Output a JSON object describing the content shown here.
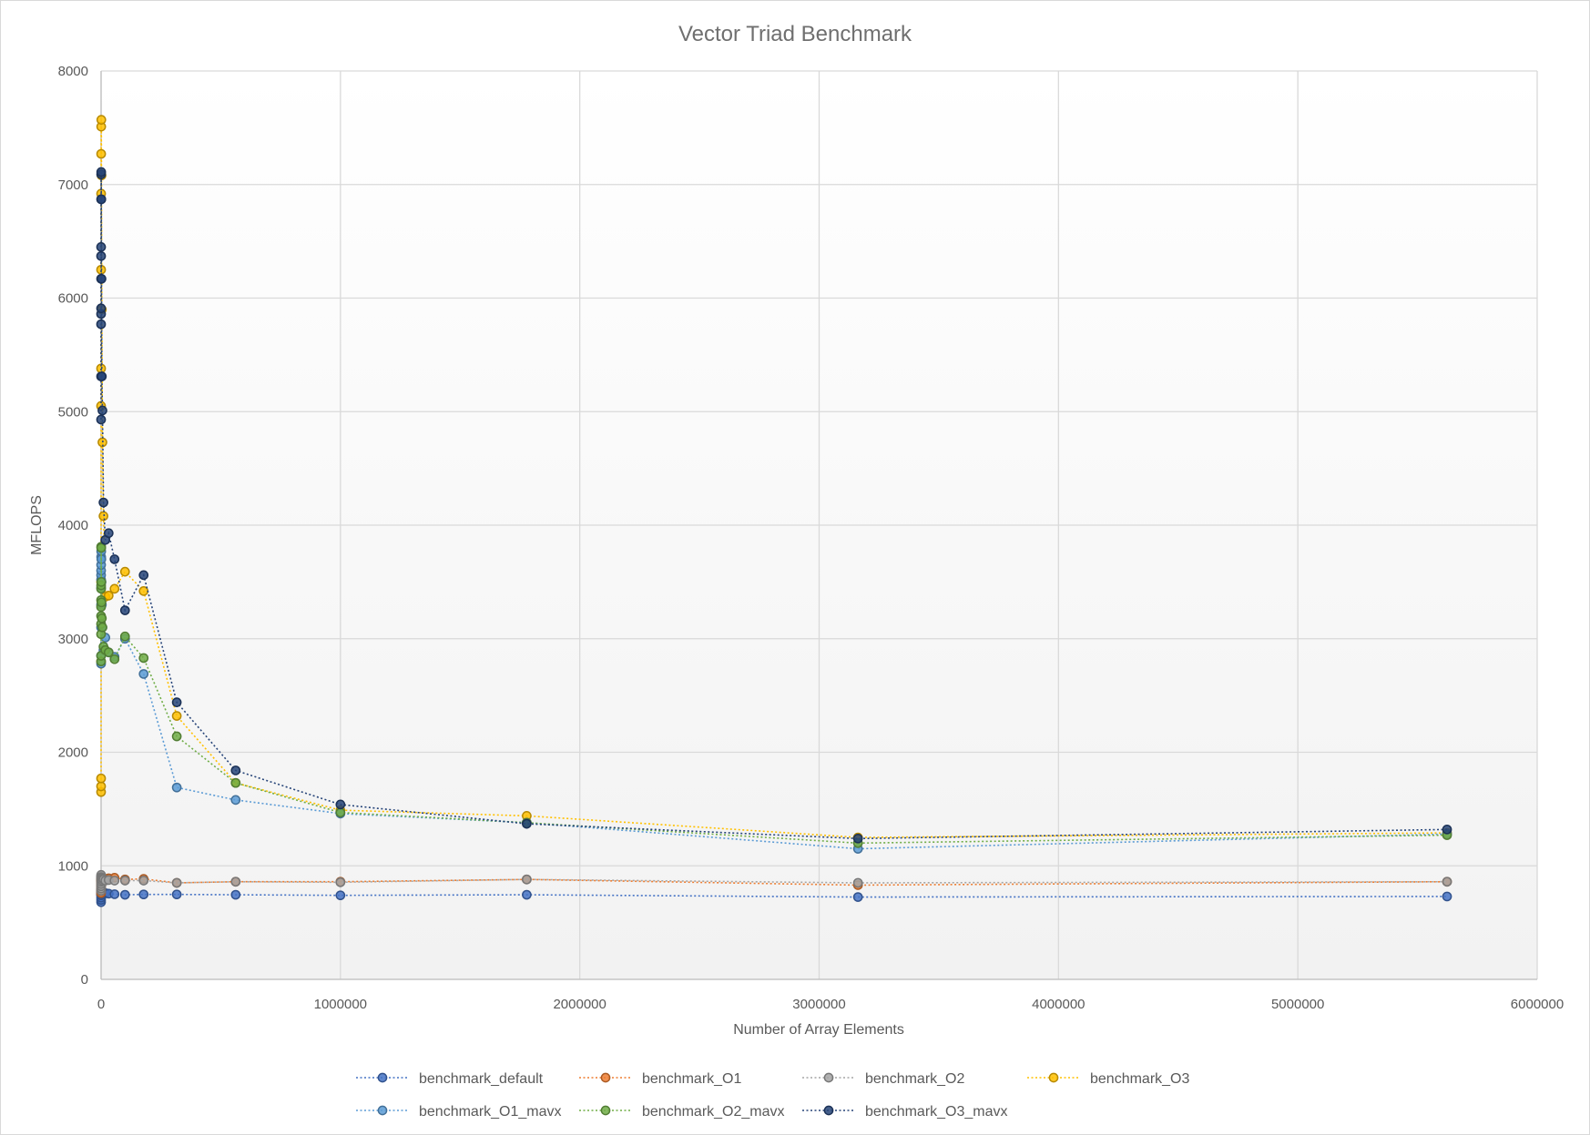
{
  "chart_data": {
    "type": "scatter",
    "title": "Vector Triad Benchmark",
    "xlabel": "Number of Array Elements",
    "ylabel": "MFLOPS",
    "xlim": [
      0,
      6000000
    ],
    "ylim": [
      0,
      8000
    ],
    "xticks": [
      "0",
      "1000000",
      "2000000",
      "3000000",
      "4000000",
      "5000000",
      "6000000"
    ],
    "yticks": [
      "0",
      "1000",
      "2000",
      "3000",
      "4000",
      "5000",
      "6000",
      "7000",
      "8000"
    ],
    "grid": true,
    "legend_position": "bottom",
    "series": [
      {
        "name": "benchmark_default",
        "color": "#4472c4",
        "x": [
          1,
          2,
          4,
          8,
          16,
          32,
          56,
          100,
          178,
          316,
          562,
          1000,
          1778,
          3162,
          5623,
          10000,
          17783,
          31623,
          56234,
          100000,
          177828,
          316228,
          562341,
          1000000,
          1778279,
          3162278,
          5623413
        ],
        "y": [
          680,
          700,
          720,
          740,
          750,
          760,
          770,
          780,
          790,
          750,
          745,
          760,
          770,
          765,
          755,
          750,
          760,
          755,
          750,
          745,
          748,
          748,
          745,
          740,
          745,
          725,
          730
        ]
      },
      {
        "name": "benchmark_O1",
        "color": "#ed7d31",
        "x": [
          1,
          2,
          4,
          8,
          16,
          32,
          56,
          100,
          178,
          316,
          562,
          1000,
          1778,
          3162,
          5623,
          10000,
          17783,
          31623,
          56234,
          100000,
          177828,
          316228,
          562341,
          1000000,
          1778279,
          3162278,
          5623413
        ],
        "y": [
          760,
          780,
          800,
          820,
          840,
          860,
          870,
          880,
          890,
          880,
          870,
          875,
          880,
          885,
          890,
          880,
          885,
          890,
          895,
          880,
          885,
          850,
          860,
          860,
          880,
          830,
          860
        ]
      },
      {
        "name": "benchmark_O2",
        "color": "#a5a5a5",
        "x": [
          1,
          2,
          4,
          8,
          16,
          32,
          56,
          100,
          178,
          316,
          562,
          1000,
          1778,
          3162,
          5623,
          10000,
          17783,
          31623,
          56234,
          100000,
          177828,
          316228,
          562341,
          1000000,
          1778279,
          3162278,
          5623413
        ],
        "y": [
          780,
          800,
          820,
          840,
          860,
          880,
          900,
          910,
          920,
          900,
          890,
          885,
          880,
          875,
          870,
          880,
          870,
          875,
          870,
          870,
          870,
          850,
          860,
          855,
          880,
          850,
          860
        ]
      },
      {
        "name": "benchmark_O3",
        "color": "#ffc000",
        "x": [
          1,
          2,
          4,
          8,
          16,
          32,
          56,
          100,
          178,
          316,
          562,
          1000,
          1778,
          3162,
          5623,
          10000,
          17783,
          31623,
          56234,
          100000,
          177828,
          316228,
          562341,
          1000000,
          1778279,
          3162278,
          5623413
        ],
        "y": [
          1650,
          1700,
          1770,
          2800,
          3500,
          5050,
          5380,
          6250,
          6920,
          7270,
          7510,
          7570,
          7080,
          5900,
          4730,
          4080,
          3370,
          3380,
          3440,
          3590,
          3420,
          2320,
          1730,
          1490,
          1440,
          1250,
          1290
        ]
      },
      {
        "name": "benchmark_O1_mavx",
        "color": "#5b9bd5",
        "x": [
          1,
          2,
          4,
          8,
          16,
          32,
          56,
          100,
          178,
          316,
          562,
          1000,
          1778,
          3162,
          5623,
          10000,
          17783,
          31623,
          56234,
          100000,
          177828,
          316228,
          562341,
          1000000,
          1778279,
          3162278,
          5623413
        ],
        "y": [
          2780,
          2850,
          3100,
          3300,
          3450,
          3520,
          3560,
          3600,
          3650,
          3720,
          3770,
          3700,
          3500,
          3300,
          3100,
          2900,
          3010,
          2880,
          2840,
          3000,
          2690,
          1690,
          1580,
          1460,
          1380,
          1150,
          1280
        ]
      },
      {
        "name": "benchmark_O2_mavx",
        "color": "#70ad47",
        "x": [
          1,
          2,
          4,
          8,
          16,
          32,
          56,
          100,
          178,
          316,
          562,
          1000,
          1778,
          3162,
          5623,
          10000,
          17783,
          31623,
          56234,
          100000,
          177828,
          316228,
          562341,
          1000000,
          1778279,
          3162278,
          5623413
        ],
        "y": [
          2800,
          2850,
          3040,
          3130,
          3200,
          3280,
          3340,
          3440,
          3470,
          3810,
          3800,
          3500,
          3320,
          3180,
          3100,
          2930,
          2900,
          2880,
          2820,
          3020,
          2830,
          2140,
          1730,
          1470,
          1380,
          1200,
          1270
        ]
      },
      {
        "name": "benchmark_O3_mavx",
        "color": "#264478",
        "x": [
          1,
          2,
          4,
          8,
          16,
          32,
          56,
          100,
          178,
          316,
          562,
          1000,
          1778,
          3162,
          5623,
          10000,
          17783,
          31623,
          56234,
          100000,
          177828,
          316228,
          562341,
          1000000,
          1778279,
          3162278,
          5623413
        ],
        "y": [
          4930,
          5310,
          5770,
          5860,
          5910,
          6170,
          6370,
          6450,
          6870,
          7090,
          7110,
          6870,
          6170,
          5310,
          5010,
          4200,
          3870,
          3930,
          3700,
          3250,
          3560,
          2440,
          1840,
          1540,
          1370,
          1240,
          1320
        ]
      }
    ]
  }
}
